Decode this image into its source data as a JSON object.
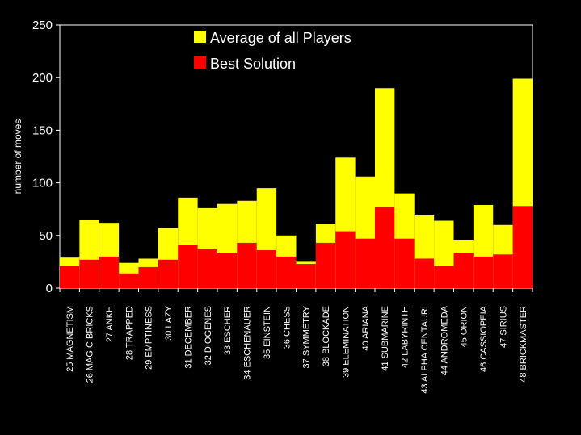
{
  "chart_data": {
    "type": "bar",
    "stacked": "overlay",
    "title": "",
    "xlabel": "",
    "ylabel": "number of moves",
    "ylim": [
      0,
      250
    ],
    "yticks": [
      0,
      50,
      100,
      150,
      200,
      250
    ],
    "grid": false,
    "legend_position": "top-center",
    "background": "#000000",
    "categories": [
      "25 MAGNETISM",
      "26 MAGIC BRICKS",
      "27 ANKH",
      "28 TRAPPED",
      "29 EMPTINESS",
      "30 LAZY",
      "31 DECEMBER",
      "32 DIOGENES",
      "33 ESCHER",
      "34 ESCHENAUER",
      "35 EINSTEIN",
      "36 CHESS",
      "37 SYMMETRY",
      "38 BLOCKADE",
      "39 ELEMINATION",
      "40 ARIANA",
      "41 SUBMARINE",
      "42 LABYRINTH",
      "43 ALPHA CENTAURI",
      "44 ANDROMEDA",
      "45 ORION",
      "46 CASSIOPEIA",
      "47 SIRIUS",
      "48 BRICKMASTER"
    ],
    "series": [
      {
        "name": "Average of all Players",
        "color": "#ffff00",
        "values": [
          29,
          65,
          62,
          24,
          28,
          57,
          86,
          76,
          80,
          83,
          95,
          50,
          25,
          61,
          124,
          106,
          190,
          90,
          69,
          64,
          46,
          79,
          60,
          199
        ]
      },
      {
        "name": "Best Solution",
        "color": "#ff0000",
        "values": [
          21,
          27,
          30,
          14,
          20,
          27,
          41,
          37,
          33,
          43,
          36,
          30,
          23,
          43,
          54,
          47,
          77,
          47,
          28,
          21,
          33,
          30,
          32,
          78
        ]
      }
    ]
  }
}
